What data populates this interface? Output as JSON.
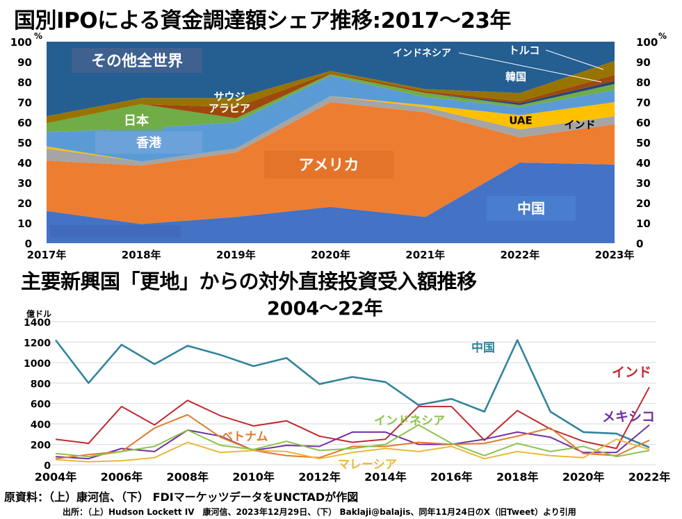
{
  "titles": {
    "top": "国別IPOによる資金調達額シェア推移:2017～23年",
    "bottom": "主要新興国「更地」からの対外直接投資受入額推移",
    "bottom_sub": "2004～22年"
  },
  "source": {
    "main": "原資料：（上）康河信、（下） FDIマーケッツデータをUNCTADが作図",
    "cite": "出所：（上）Hudson Lockett IV　康河信、2023年12月29日、（下） Baklaji@balajis、同年11月24日のX（旧Tweet）より引用"
  },
  "chart_data": [
    {
      "type": "area",
      "stacked": true,
      "x": [
        "2017年",
        "2018年",
        "2019年",
        "2020年",
        "2021年",
        "2022年",
        "2023年"
      ],
      "ylim": [
        0,
        100
      ],
      "yticks": [
        0,
        10,
        20,
        30,
        40,
        50,
        60,
        70,
        80,
        90,
        100
      ],
      "y_unit": "%",
      "series": [
        {
          "name": "中国",
          "color": "#4472c4",
          "values": [
            16,
            9.5,
            13,
            18,
            13,
            40,
            39
          ]
        },
        {
          "name": "アメリカ",
          "color": "#ed7d31",
          "values": [
            25,
            29,
            32,
            52,
            52,
            12.5,
            20
          ]
        },
        {
          "name": "",
          "color": "#a5a5a5",
          "values": [
            6,
            2,
            2,
            3,
            2.5,
            4,
            4
          ]
        },
        {
          "name": "",
          "color": "#ffc000",
          "values": [
            1,
            0,
            0,
            0,
            1,
            7,
            7
          ]
        },
        {
          "name": "香港",
          "color": "#5b9bd5",
          "values": [
            7,
            16.5,
            13,
            10,
            4,
            4,
            6
          ]
        },
        {
          "name": "日本",
          "color": "#70ad47",
          "values": [
            4.5,
            12,
            2,
            1,
            2,
            1,
            3
          ]
        },
        {
          "name": "",
          "color": "#264478",
          "values": [
            0,
            0,
            0,
            0,
            0,
            1,
            1.5
          ]
        },
        {
          "name": "サウジ\nアラビア",
          "color": "#9e480e",
          "values": [
            0,
            0,
            5.5,
            0.5,
            1,
            1,
            3
          ]
        },
        {
          "name": "",
          "color": "#997300",
          "values": [
            3.5,
            3,
            4.5,
            1,
            1,
            4,
            7
          ]
        },
        {
          "name": "その他全世界",
          "color": "#255e91",
          "values": [
            37,
            28,
            28,
            14.5,
            23.5,
            25.5,
            9.5
          ]
        }
      ],
      "labels": [
        {
          "text": "その他全世界"
        },
        {
          "text": "日本"
        },
        {
          "text": "香港"
        },
        {
          "text": "サウジ\nアラビア"
        },
        {
          "text": "アメリカ"
        },
        {
          "text": "中国"
        },
        {
          "text": "インドネシア"
        },
        {
          "text": "トルコ"
        },
        {
          "text": "韓国"
        },
        {
          "text": "UAE"
        },
        {
          "text": "インド"
        }
      ]
    },
    {
      "type": "line",
      "x": [
        2004,
        2005,
        2006,
        2007,
        2008,
        2009,
        2010,
        2011,
        2012,
        2013,
        2014,
        2015,
        2016,
        2017,
        2018,
        2019,
        2020,
        2021,
        2022
      ],
      "xticks": [
        "2004年",
        "2006年",
        "2008年",
        "2010年",
        "2012年",
        "2014年",
        "2016年",
        "2018年",
        "2020年",
        "2022年"
      ],
      "ylabel": "億ドル",
      "ylim": [
        0,
        1400
      ],
      "yticks": [
        0,
        200,
        400,
        600,
        800,
        1000,
        1200,
        1400
      ],
      "series": [
        {
          "name": "中国",
          "color": "#31849b",
          "values": [
            1220,
            800,
            1175,
            985,
            1165,
            1075,
            965,
            1045,
            790,
            860,
            810,
            585,
            645,
            520,
            1220,
            520,
            320,
            305,
            170
          ]
        },
        {
          "name": "インド",
          "color": "#c0282e",
          "values": [
            250,
            210,
            570,
            390,
            630,
            480,
            380,
            430,
            280,
            220,
            250,
            570,
            570,
            240,
            530,
            350,
            230,
            160,
            760
          ]
        },
        {
          "name": "メキシコ",
          "color": "#7030a0",
          "values": [
            80,
            60,
            160,
            130,
            340,
            280,
            140,
            190,
            180,
            320,
            320,
            200,
            200,
            250,
            320,
            270,
            120,
            120,
            390
          ]
        },
        {
          "name": "ベトナム",
          "color": "#e07a2e",
          "values": [
            60,
            100,
            130,
            360,
            490,
            270,
            140,
            90,
            70,
            180,
            180,
            220,
            200,
            210,
            280,
            360,
            110,
            90,
            240
          ]
        },
        {
          "name": "インドネシア",
          "color": "#8bc34a",
          "values": [
            110,
            80,
            130,
            180,
            340,
            190,
            150,
            230,
            140,
            160,
            200,
            390,
            210,
            90,
            210,
            130,
            180,
            80,
            140
          ]
        },
        {
          "name": "マレーシア",
          "color": "#e8b83a",
          "values": [
            50,
            30,
            40,
            70,
            220,
            120,
            140,
            130,
            60,
            120,
            160,
            130,
            180,
            60,
            130,
            90,
            70,
            250,
            150
          ]
        }
      ],
      "labels": [
        {
          "text": "中国"
        },
        {
          "text": "インド"
        },
        {
          "text": "メキシコ"
        },
        {
          "text": "ベトナム"
        },
        {
          "text": "インドネシア"
        },
        {
          "text": "マレーシア"
        }
      ]
    }
  ]
}
